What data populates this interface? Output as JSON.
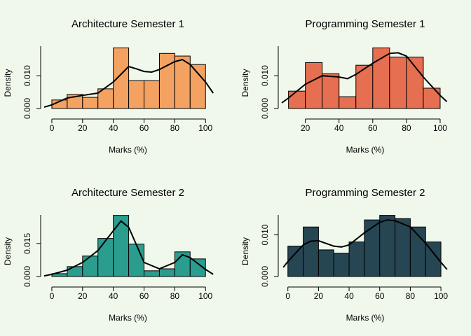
{
  "chart_data": [
    {
      "type": "histogram",
      "title": "Architecture Semester 1",
      "x_label": "Marks (%)",
      "y_label": "Density",
      "color": "#f4a261",
      "bins": [
        0,
        10,
        20,
        30,
        40,
        50,
        60,
        70,
        80,
        90,
        100
      ],
      "values": [
        0.0026,
        0.0043,
        0.0034,
        0.006,
        0.0185,
        0.0085,
        0.0085,
        0.0168,
        0.016,
        0.0134
      ],
      "density": {
        "x": [
          -5,
          0,
          10,
          20,
          30,
          40,
          50,
          55,
          60,
          65,
          70,
          80,
          85,
          90,
          100,
          105
        ],
        "y": [
          0.0004,
          0.0011,
          0.0032,
          0.004,
          0.0047,
          0.0081,
          0.0128,
          0.0121,
          0.0113,
          0.0111,
          0.0119,
          0.0143,
          0.0149,
          0.0134,
          0.0081,
          0.0047
        ]
      },
      "xlim": [
        -5,
        104
      ],
      "ylim": [
        0,
        0.019
      ],
      "xticks": [
        0,
        20,
        40,
        60,
        80,
        100
      ],
      "yticks": [
        {
          "value": 0,
          "label": "0.000"
        },
        {
          "value": 0.01,
          "label": "0.010"
        }
      ]
    },
    {
      "type": "histogram",
      "title": "Programming Semester 1",
      "x_label": "Marks (%)",
      "y_label": "Density",
      "color": "#e76f51",
      "bins": [
        10,
        20,
        30,
        40,
        50,
        60,
        70,
        80,
        90,
        100
      ],
      "values": [
        0.0053,
        0.014,
        0.0106,
        0.0036,
        0.0132,
        0.0185,
        0.0157,
        0.0157,
        0.0062
      ],
      "density": {
        "x": [
          6,
          10,
          20,
          30,
          40,
          45,
          50,
          60,
          70,
          75,
          80,
          90,
          100,
          104
        ],
        "y": [
          0.0017,
          0.0032,
          0.0074,
          0.01,
          0.0096,
          0.0091,
          0.0104,
          0.0138,
          0.0168,
          0.017,
          0.016,
          0.0096,
          0.004,
          0.0021
        ]
      },
      "xlim": [
        6,
        105
      ],
      "ylim": [
        0,
        0.019
      ],
      "xticks": [
        20,
        40,
        60,
        80,
        100
      ],
      "yticks": [
        {
          "value": 0,
          "label": "0.000"
        },
        {
          "value": 0.01,
          "label": "0.010"
        }
      ]
    },
    {
      "type": "histogram",
      "title": "Architecture Semester 2",
      "x_label": "Marks (%)",
      "y_label": "Density",
      "color": "#2a9d8f",
      "bins": [
        0,
        10,
        20,
        30,
        40,
        50,
        60,
        70,
        80,
        90,
        100
      ],
      "values": [
        0.0013,
        0.0045,
        0.0093,
        0.0173,
        0.0278,
        0.0147,
        0.0026,
        0.0035,
        0.0112,
        0.008
      ],
      "density": {
        "x": [
          -5,
          0,
          10,
          20,
          30,
          40,
          45,
          50,
          55,
          60,
          70,
          80,
          85,
          90,
          100,
          105
        ],
        "y": [
          0.0003,
          0.001,
          0.0029,
          0.0064,
          0.0118,
          0.0208,
          0.0252,
          0.0224,
          0.0144,
          0.0064,
          0.0035,
          0.0064,
          0.0099,
          0.0086,
          0.0032,
          0.001
        ]
      },
      "xlim": [
        -5,
        104
      ],
      "ylim": [
        0,
        0.028
      ],
      "xticks": [
        0,
        20,
        40,
        60,
        80,
        100
      ],
      "yticks": [
        {
          "value": 0,
          "label": "0.000"
        },
        {
          "value": 0.015,
          "label": "0.015"
        }
      ]
    },
    {
      "type": "histogram",
      "title": "Programming Semester 2",
      "x_label": "Marks (%)",
      "y_label": "Density",
      "color": "#264653",
      "bins": [
        0,
        10,
        20,
        30,
        40,
        50,
        60,
        70,
        80,
        90,
        100
      ],
      "values": [
        0.0073,
        0.0119,
        0.0064,
        0.0056,
        0.0083,
        0.0136,
        0.0147,
        0.0139,
        0.0119,
        0.0083
      ],
      "density": {
        "x": [
          -3,
          0,
          10,
          15,
          20,
          30,
          35,
          40,
          50,
          60,
          65,
          70,
          80,
          90,
          100,
          104
        ],
        "y": [
          0.0022,
          0.0036,
          0.0076,
          0.0085,
          0.0086,
          0.0073,
          0.0071,
          0.0076,
          0.0105,
          0.013,
          0.0136,
          0.0134,
          0.0119,
          0.008,
          0.0034,
          0.0017
        ]
      },
      "xlim": [
        -4,
        105
      ],
      "ylim": [
        0,
        0.0148
      ],
      "xticks": [
        0,
        20,
        40,
        60,
        80,
        100
      ],
      "yticks": [
        {
          "value": 0,
          "label": "0.000"
        },
        {
          "value": 0.01,
          "label": "0.010"
        }
      ]
    }
  ]
}
